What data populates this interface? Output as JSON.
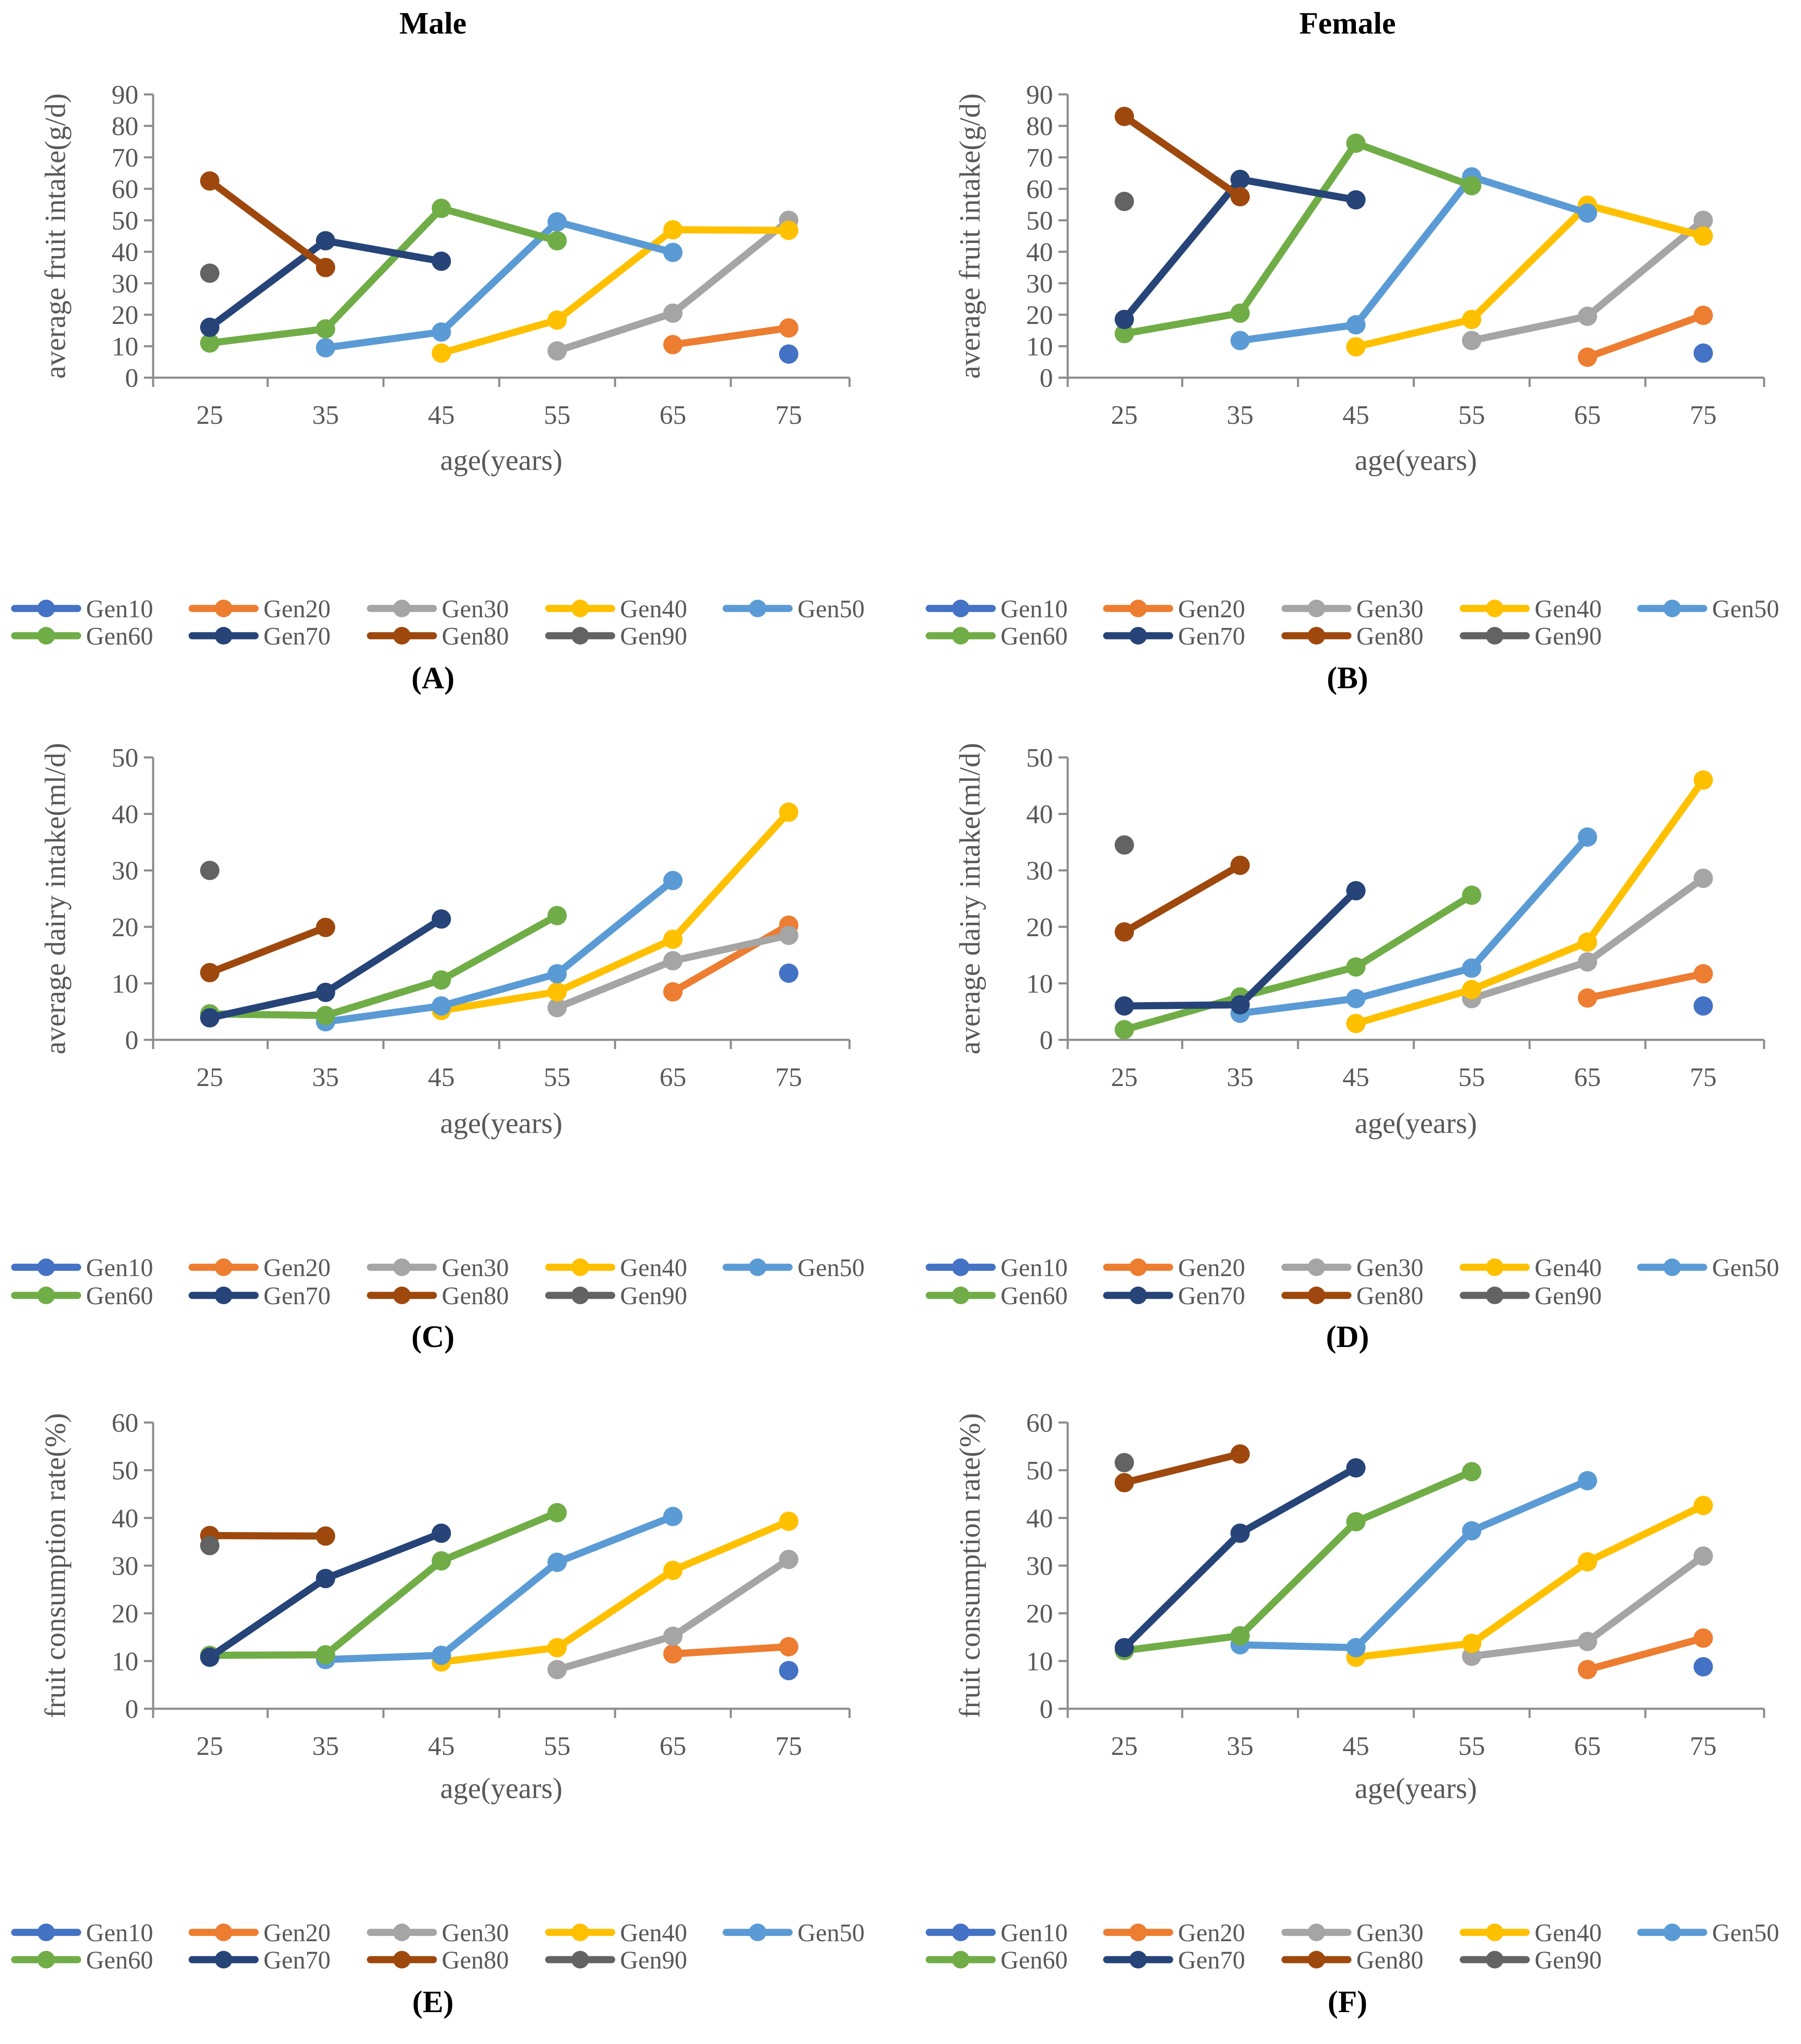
{
  "columns": [
    "Male",
    "Female"
  ],
  "series_colors": {
    "Gen10": "#4472C4",
    "Gen20": "#ED7D31",
    "Gen30": "#A5A5A5",
    "Gen40": "#FFC000",
    "Gen50": "#5B9BD5",
    "Gen60": "#70AD47",
    "Gen70": "#264478",
    "Gen80": "#9E480E",
    "Gen90": "#636363"
  },
  "chart_data": [
    {
      "panel": "A",
      "label": "(A)",
      "type": "line",
      "sex": "Male",
      "xlabel": "age(years)",
      "ylabel": "average fruit intake(g/d)",
      "categories": [
        "25",
        "35",
        "45",
        "55",
        "65",
        "75"
      ],
      "ylim": [
        0,
        90
      ],
      "yticks": [
        0,
        10,
        20,
        30,
        40,
        50,
        60,
        70,
        80,
        90
      ],
      "grid": false,
      "legend": "bottom",
      "series": [
        {
          "name": "Gen10",
          "values": [
            null,
            null,
            null,
            null,
            null,
            7.5
          ]
        },
        {
          "name": "Gen20",
          "values": [
            null,
            null,
            null,
            null,
            10.5,
            15.8
          ]
        },
        {
          "name": "Gen30",
          "values": [
            null,
            null,
            null,
            8.5,
            20.5,
            50
          ]
        },
        {
          "name": "Gen40",
          "values": [
            null,
            null,
            7.8,
            18.3,
            47,
            46.8
          ]
        },
        {
          "name": "Gen50",
          "values": [
            null,
            9.5,
            14.5,
            49.5,
            39.8,
            null
          ]
        },
        {
          "name": "Gen60",
          "values": [
            11,
            15.5,
            53.8,
            43.5,
            null,
            null
          ]
        },
        {
          "name": "Gen70",
          "values": [
            16,
            43.5,
            37,
            null,
            null,
            null
          ]
        },
        {
          "name": "Gen80",
          "values": [
            62.5,
            35,
            null,
            null,
            null,
            null
          ]
        },
        {
          "name": "Gen90",
          "values": [
            33.2,
            null,
            null,
            null,
            null,
            null
          ]
        }
      ]
    },
    {
      "panel": "B",
      "label": "(B)",
      "type": "line",
      "sex": "Female",
      "xlabel": "age(years)",
      "ylabel": "average fruit intake(g/d)",
      "categories": [
        "25",
        "35",
        "45",
        "55",
        "65",
        "75"
      ],
      "ylim": [
        0,
        90
      ],
      "yticks": [
        0,
        10,
        20,
        30,
        40,
        50,
        60,
        70,
        80,
        90
      ],
      "grid": false,
      "legend": "bottom",
      "series": [
        {
          "name": "Gen10",
          "values": [
            null,
            null,
            null,
            null,
            null,
            7.8
          ]
        },
        {
          "name": "Gen20",
          "values": [
            null,
            null,
            null,
            null,
            6.5,
            19.8
          ]
        },
        {
          "name": "Gen30",
          "values": [
            null,
            null,
            null,
            11.8,
            19.5,
            50
          ]
        },
        {
          "name": "Gen40",
          "values": [
            null,
            null,
            9.8,
            18.5,
            54.8,
            45
          ]
        },
        {
          "name": "Gen50",
          "values": [
            null,
            11.8,
            16.8,
            63.8,
            52.3,
            null
          ]
        },
        {
          "name": "Gen60",
          "values": [
            14,
            20.5,
            74.5,
            61,
            null,
            null
          ]
        },
        {
          "name": "Gen70",
          "values": [
            18.5,
            63,
            56.5,
            null,
            null,
            null
          ]
        },
        {
          "name": "Gen80",
          "values": [
            83,
            57.5,
            null,
            null,
            null,
            null
          ]
        },
        {
          "name": "Gen90",
          "values": [
            56,
            null,
            null,
            null,
            null,
            null
          ]
        }
      ]
    },
    {
      "panel": "C",
      "label": "(C)",
      "type": "line",
      "sex": "Male",
      "xlabel": "age(years)",
      "ylabel": "average dairy intake(ml/d)",
      "categories": [
        "25",
        "35",
        "45",
        "55",
        "65",
        "75"
      ],
      "ylim": [
        0,
        50
      ],
      "yticks": [
        0,
        10,
        20,
        30,
        40,
        50
      ],
      "grid": false,
      "legend": "bottom",
      "series": [
        {
          "name": "Gen10",
          "values": [
            null,
            null,
            null,
            null,
            null,
            11.8
          ]
        },
        {
          "name": "Gen20",
          "values": [
            null,
            null,
            null,
            null,
            8.5,
            20.3
          ]
        },
        {
          "name": "Gen30",
          "values": [
            null,
            null,
            null,
            5.7,
            14,
            18.5
          ]
        },
        {
          "name": "Gen40",
          "values": [
            null,
            null,
            5.2,
            8.5,
            17.8,
            40.3
          ]
        },
        {
          "name": "Gen50",
          "values": [
            null,
            3.2,
            6,
            11.7,
            28.2,
            null
          ]
        },
        {
          "name": "Gen60",
          "values": [
            4.6,
            4.3,
            10.6,
            22,
            null,
            null
          ]
        },
        {
          "name": "Gen70",
          "values": [
            3.9,
            8.4,
            21.4,
            null,
            null,
            null
          ]
        },
        {
          "name": "Gen80",
          "values": [
            11.9,
            19.9,
            null,
            null,
            null,
            null
          ]
        },
        {
          "name": "Gen90",
          "values": [
            30,
            null,
            null,
            null,
            null,
            null
          ]
        }
      ]
    },
    {
      "panel": "D",
      "label": "(D)",
      "type": "line",
      "sex": "Female",
      "xlabel": "age(years)",
      "ylabel": "average dairy intake(ml/d)",
      "categories": [
        "25",
        "35",
        "45",
        "55",
        "65",
        "75"
      ],
      "ylim": [
        0,
        50
      ],
      "yticks": [
        0,
        10,
        20,
        30,
        40,
        50
      ],
      "grid": false,
      "legend": "bottom",
      "series": [
        {
          "name": "Gen10",
          "values": [
            null,
            null,
            null,
            null,
            null,
            6
          ]
        },
        {
          "name": "Gen20",
          "values": [
            null,
            null,
            null,
            null,
            7.4,
            11.7
          ]
        },
        {
          "name": "Gen30",
          "values": [
            null,
            null,
            null,
            7.3,
            13.8,
            28.6
          ]
        },
        {
          "name": "Gen40",
          "values": [
            null,
            null,
            2.9,
            8.9,
            17.3,
            46
          ]
        },
        {
          "name": "Gen50",
          "values": [
            null,
            4.7,
            7.3,
            12.7,
            35.9,
            null
          ]
        },
        {
          "name": "Gen60",
          "values": [
            1.8,
            7.6,
            12.9,
            25.6,
            null,
            null
          ]
        },
        {
          "name": "Gen70",
          "values": [
            6,
            6.2,
            26.4,
            null,
            null,
            null
          ]
        },
        {
          "name": "Gen80",
          "values": [
            19.1,
            30.9,
            null,
            null,
            null,
            null
          ]
        },
        {
          "name": "Gen90",
          "values": [
            34.5,
            null,
            null,
            null,
            null,
            null
          ]
        }
      ]
    },
    {
      "panel": "E",
      "label": "(E)",
      "type": "line",
      "sex": "Male",
      "xlabel": "age(years)",
      "ylabel": "fruit consumption rate(%)",
      "categories": [
        "25",
        "35",
        "45",
        "55",
        "65",
        "75"
      ],
      "ylim": [
        0,
        60
      ],
      "yticks": [
        0,
        10,
        20,
        30,
        40,
        50,
        60
      ],
      "grid": false,
      "legend": "bottom",
      "series": [
        {
          "name": "Gen10",
          "values": [
            null,
            null,
            null,
            null,
            null,
            8
          ]
        },
        {
          "name": "Gen20",
          "values": [
            null,
            null,
            null,
            null,
            11.5,
            13
          ]
        },
        {
          "name": "Gen30",
          "values": [
            null,
            null,
            null,
            8.2,
            15.2,
            31.3
          ]
        },
        {
          "name": "Gen40",
          "values": [
            null,
            null,
            9.8,
            12.8,
            29,
            39.3
          ]
        },
        {
          "name": "Gen50",
          "values": [
            null,
            10.3,
            11.2,
            30.7,
            40.3,
            null
          ]
        },
        {
          "name": "Gen60",
          "values": [
            11.2,
            11.3,
            31,
            41.1,
            null,
            null
          ]
        },
        {
          "name": "Gen70",
          "values": [
            10.8,
            27.3,
            36.8,
            null,
            null,
            null
          ]
        },
        {
          "name": "Gen80",
          "values": [
            36.3,
            36.2,
            null,
            null,
            null,
            null
          ]
        },
        {
          "name": "Gen90",
          "values": [
            34.2,
            null,
            null,
            null,
            null,
            null
          ]
        }
      ]
    },
    {
      "panel": "F",
      "label": "(F)",
      "type": "line",
      "sex": "Female",
      "xlabel": "age(years)",
      "ylabel": "fruit consumption rate(%)",
      "categories": [
        "25",
        "35",
        "45",
        "55",
        "65",
        "75"
      ],
      "ylim": [
        0,
        60
      ],
      "yticks": [
        0,
        10,
        20,
        30,
        40,
        50,
        60
      ],
      "grid": false,
      "legend": "bottom",
      "series": [
        {
          "name": "Gen10",
          "values": [
            null,
            null,
            null,
            null,
            null,
            8.8
          ]
        },
        {
          "name": "Gen20",
          "values": [
            null,
            null,
            null,
            null,
            8.2,
            14.8
          ]
        },
        {
          "name": "Gen30",
          "values": [
            null,
            null,
            null,
            11,
            14.1,
            32
          ]
        },
        {
          "name": "Gen40",
          "values": [
            null,
            null,
            10.8,
            13.7,
            30.8,
            42.6
          ]
        },
        {
          "name": "Gen50",
          "values": [
            null,
            13.4,
            12.8,
            37.3,
            47.8,
            null
          ]
        },
        {
          "name": "Gen60",
          "values": [
            12.2,
            15.3,
            39.2,
            49.7,
            null,
            null
          ]
        },
        {
          "name": "Gen70",
          "values": [
            12.8,
            36.8,
            50.5,
            null,
            null,
            null
          ]
        },
        {
          "name": "Gen80",
          "values": [
            47.4,
            53.4,
            null,
            null,
            null,
            null
          ]
        },
        {
          "name": "Gen90",
          "values": [
            51.6,
            null,
            null,
            null,
            null,
            null
          ]
        }
      ]
    }
  ]
}
